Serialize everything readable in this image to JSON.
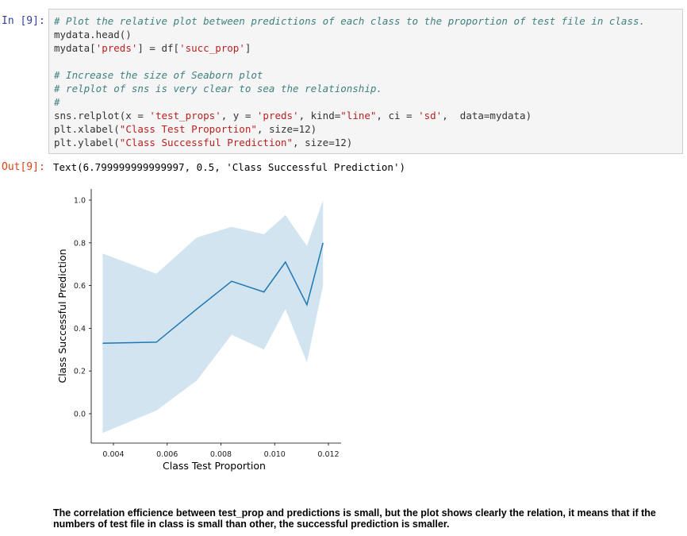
{
  "cells": {
    "in_prompt": "In [9]:",
    "out_prompt": "Out[9]:",
    "code": {
      "c1": "# Plot the relative plot between predictions of each class to the proportion of test file in class.",
      "l2": "mydata.head()",
      "l3_a": "mydata[",
      "l3_s": "'preds'",
      "l3_b": "] = df[",
      "l3_s2": "'succ_prop'",
      "l3_c": "]",
      "c5": "# Increase the size of Seaborn plot",
      "c6": "# relplot of sns is very clear to sea the relationship.",
      "c7": "#",
      "l8_a": "sns.relplot(x = ",
      "l8_s1": "'test_props'",
      "l8_b": ", y = ",
      "l8_s2": "'preds'",
      "l8_c": ", kind=",
      "l8_s3": "\"line\"",
      "l8_d": ", ci = ",
      "l8_s4": "'sd'",
      "l8_e": ",  data=mydata)",
      "l9_a": "plt.xlabel(",
      "l9_s": "\"Class Test Proportion\"",
      "l9_b": ", size=12)",
      "l10_a": "plt.ylabel(",
      "l10_s": "\"Class Successful Prediction\"",
      "l10_b": ", size=12)"
    },
    "output_text": "Text(6.799999999999997, 0.5, 'Class Successful Prediction')",
    "note": "The correlation efficience between test_prop and predictions is small, but the plot shows clearly the relation, it means that if the numbers of test file in class is small than other, the successful prediction is smaller."
  },
  "chart_data": {
    "type": "line",
    "xlabel": "Class Test Proportion",
    "ylabel": "Class Successful Prediction",
    "xlim": [
      0.0033,
      0.0122
    ],
    "ylim": [
      -0.12,
      1.05
    ],
    "xticks": [
      0.004,
      0.006,
      0.008,
      0.01,
      0.012
    ],
    "xtick_labels": [
      "0.004",
      "0.006",
      "0.008",
      "0.010",
      "0.012"
    ],
    "yticks": [
      0.0,
      0.2,
      0.4,
      0.6,
      0.8,
      1.0
    ],
    "ytick_labels": [
      "0.0",
      "0.2",
      "0.4",
      "0.6",
      "0.8",
      "1.0"
    ],
    "line_color": "#1f77b4",
    "band_color": "#1f77b4",
    "x": [
      0.0036,
      0.0056,
      0.0071,
      0.0084,
      0.0096,
      0.0104,
      0.0112,
      0.0118
    ],
    "series": [
      {
        "values": [
          0.33,
          0.335,
          0.49,
          0.62,
          0.57,
          0.71,
          0.51,
          0.8
        ],
        "lower": [
          -0.09,
          0.015,
          0.155,
          0.37,
          0.3,
          0.49,
          0.24,
          0.6
        ],
        "upper": [
          0.75,
          0.655,
          0.825,
          0.875,
          0.84,
          0.93,
          0.785,
          1.0
        ]
      }
    ]
  }
}
